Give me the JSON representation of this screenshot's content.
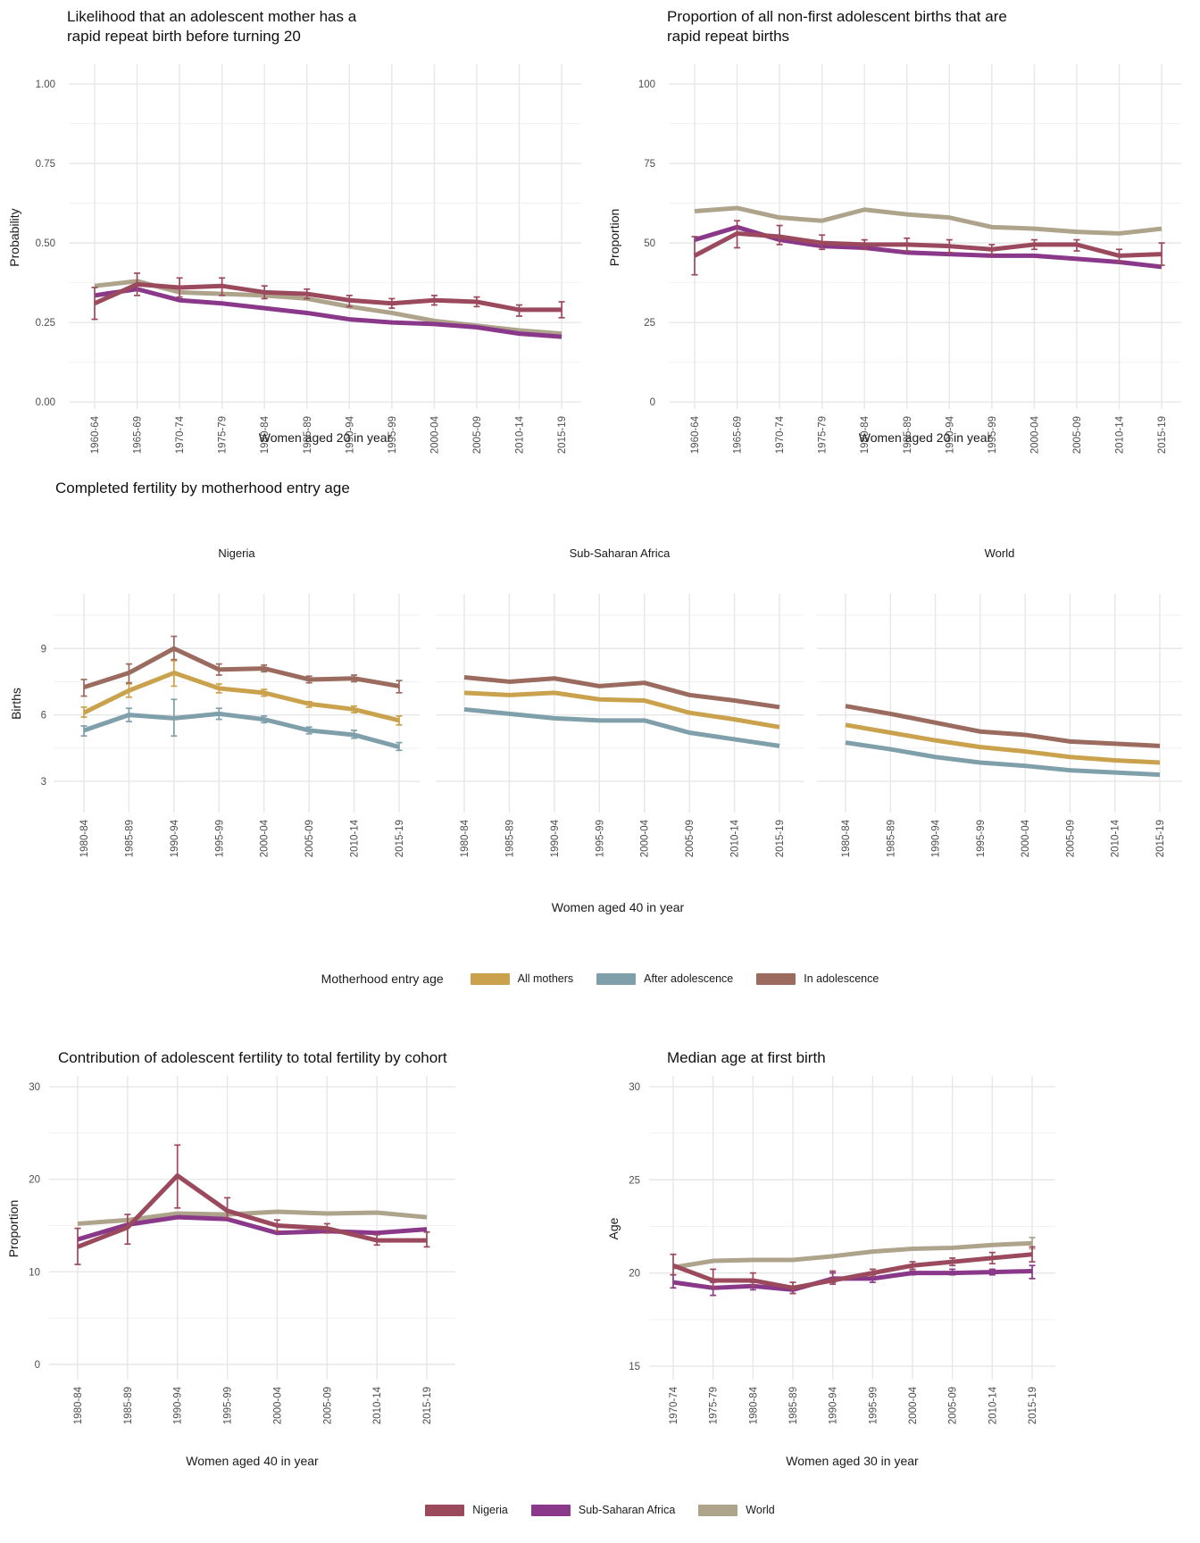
{
  "palette": {
    "nigeria": "#9B4A5E",
    "sub_saharan_africa": "#8A3889",
    "world": "#AEA38B",
    "all_mothers": "#CAA24D",
    "after_adolescence": "#7FA0AB",
    "in_adolescence": "#9A6B5E",
    "grid_major": "#E7E7E7",
    "grid_minor": "#F2F2F2",
    "tick_text": "#4D4D4D"
  },
  "legends": {
    "motherhood": {
      "title": "Motherhood entry age",
      "items": [
        {
          "label": "All mothers",
          "color": "#CAA24D"
        },
        {
          "label": "After adolescence",
          "color": "#7FA0AB"
        },
        {
          "label": "In adolescence",
          "color": "#9A6B5E"
        }
      ]
    },
    "region": {
      "items": [
        {
          "label": "Nigeria",
          "color": "#9B4A5E"
        },
        {
          "label": "Sub-Saharan Africa",
          "color": "#8A3889"
        },
        {
          "label": "World",
          "color": "#AEA38B"
        }
      ]
    }
  },
  "chart_data": [
    {
      "id": "likelihood-rapid-repeat-birth",
      "type": "line",
      "title": "Likelihood that an adolescent mother has a\nrapid repeat birth before turning 20",
      "xlabel": "Women aged 20 in year",
      "ylabel": "Probability",
      "ylim": [
        -0.022,
        1.062
      ],
      "yticks": [
        {
          "value": 0,
          "label": "0.00"
        },
        {
          "value": 0.25,
          "label": "0.25"
        },
        {
          "value": 0.5,
          "label": "0.50"
        },
        {
          "value": 0.75,
          "label": "0.75"
        },
        {
          "value": 1,
          "label": "1.00"
        }
      ],
      "yminor": [
        0.125,
        0.375,
        0.625,
        0.875
      ],
      "categories": [
        "1960-64",
        "1965-69",
        "1970-74",
        "1975-79",
        "1980-84",
        "1985-89",
        "1990-94",
        "1995-99",
        "2000-04",
        "2005-09",
        "2010-14",
        "2015-19"
      ],
      "series": [
        {
          "name": "World",
          "color": "#AEA38B",
          "values": [
            0.365,
            0.38,
            0.345,
            0.34,
            0.335,
            0.325,
            0.3,
            0.28,
            0.255,
            0.24,
            0.225,
            0.215
          ]
        },
        {
          "name": "Sub-Saharan Africa",
          "color": "#8A3889",
          "values": [
            0.335,
            0.355,
            0.32,
            0.31,
            0.295,
            0.28,
            0.26,
            0.25,
            0.245,
            0.235,
            0.215,
            0.205
          ]
        },
        {
          "name": "Nigeria",
          "color": "#9B4A5E",
          "values": [
            0.31,
            0.37,
            0.36,
            0.365,
            0.345,
            0.34,
            0.32,
            0.31,
            0.32,
            0.315,
            0.29,
            0.29
          ],
          "err_lo": [
            0.26,
            0.335,
            0.33,
            0.335,
            0.325,
            0.325,
            0.3,
            0.295,
            0.305,
            0.3,
            0.27,
            0.265
          ],
          "err_hi": [
            0.36,
            0.405,
            0.39,
            0.39,
            0.365,
            0.355,
            0.335,
            0.325,
            0.335,
            0.33,
            0.305,
            0.315
          ]
        }
      ]
    },
    {
      "id": "proportion-rapid-repeat-births",
      "type": "line",
      "title": "Proportion of all non-first adolescent births that are\nrapid repeat births",
      "xlabel": "Women aged 20 in year",
      "ylabel": "Proportion",
      "ylim": [
        -2.2,
        106.2
      ],
      "yticks": [
        {
          "value": 0,
          "label": "0"
        },
        {
          "value": 25,
          "label": "25"
        },
        {
          "value": 50,
          "label": "50"
        },
        {
          "value": 75,
          "label": "75"
        },
        {
          "value": 100,
          "label": "100"
        }
      ],
      "yminor": [
        12.5,
        37.5,
        62.5,
        87.5
      ],
      "categories": [
        "1960-64",
        "1965-69",
        "1970-74",
        "1975-79",
        "1980-84",
        "1985-89",
        "1990-94",
        "1995-99",
        "2000-04",
        "2005-09",
        "2010-14",
        "2015-19"
      ],
      "series": [
        {
          "name": "World",
          "color": "#AEA38B",
          "values": [
            60,
            61,
            58,
            57,
            60.5,
            59,
            58,
            55,
            54.5,
            53.5,
            53,
            54.5
          ]
        },
        {
          "name": "Sub-Saharan Africa",
          "color": "#8A3889",
          "values": [
            51,
            55,
            51,
            49,
            48.5,
            47,
            46.5,
            46,
            46,
            45,
            44,
            42.5
          ]
        },
        {
          "name": "Nigeria",
          "color": "#9B4A5E",
          "values": [
            46,
            53,
            52,
            50,
            49.5,
            49.5,
            49,
            48,
            49.5,
            49.5,
            46,
            46.5
          ],
          "err_lo": [
            40,
            48.5,
            49.5,
            48,
            48,
            47.5,
            47,
            46.5,
            48,
            47.5,
            44,
            43
          ],
          "err_hi": [
            52,
            57,
            55.5,
            52.5,
            51,
            51.5,
            51,
            49.5,
            51,
            51,
            48,
            50
          ]
        }
      ]
    },
    {
      "id": "completed-fertility",
      "type": "line",
      "title": "Completed fertility by motherhood entry age",
      "xlabel": "Women aged 40 in year",
      "ylabel": "Births",
      "ylim": [
        1.59,
        11.47
      ],
      "yticks": [
        {
          "value": 3,
          "label": "3"
        },
        {
          "value": 6,
          "label": "6"
        },
        {
          "value": 9,
          "label": "9"
        }
      ],
      "yminor": [
        4.5,
        7.5,
        10.5
      ],
      "categories": [
        "1980-84",
        "1985-89",
        "1990-94",
        "1995-99",
        "2000-04",
        "2005-09",
        "2010-14",
        "2015-19"
      ],
      "facets": [
        {
          "label": "Nigeria",
          "series": [
            {
              "name": "After adolescence",
              "color": "#7FA0AB",
              "values": [
                5.3,
                6.0,
                5.85,
                6.05,
                5.8,
                5.3,
                5.1,
                4.55
              ],
              "err_lo": [
                5.05,
                5.7,
                5.05,
                5.8,
                5.65,
                5.15,
                4.95,
                4.4
              ],
              "err_hi": [
                5.5,
                6.3,
                6.7,
                6.3,
                5.95,
                5.45,
                5.3,
                4.75
              ]
            },
            {
              "name": "All mothers",
              "color": "#CAA24D",
              "values": [
                6.1,
                7.1,
                7.9,
                7.2,
                7.0,
                6.5,
                6.25,
                5.75
              ],
              "err_lo": [
                5.9,
                6.8,
                7.3,
                7.0,
                6.85,
                6.35,
                6.1,
                5.55
              ],
              "err_hi": [
                6.35,
                7.4,
                8.45,
                7.4,
                7.15,
                6.6,
                6.4,
                5.95
              ]
            },
            {
              "name": "In adolescence",
              "color": "#9A6B5E",
              "values": [
                7.25,
                7.9,
                9.0,
                8.05,
                8.1,
                7.6,
                7.65,
                7.3
              ],
              "err_lo": [
                6.85,
                7.45,
                8.5,
                7.8,
                7.95,
                7.45,
                7.5,
                7.0
              ],
              "err_hi": [
                7.6,
                8.3,
                9.55,
                8.3,
                8.25,
                7.75,
                7.8,
                7.55
              ]
            }
          ]
        },
        {
          "label": "Sub-Saharan Africa",
          "series": [
            {
              "name": "After adolescence",
              "color": "#7FA0AB",
              "values": [
                6.25,
                6.05,
                5.85,
                5.75,
                5.75,
                5.2,
                4.9,
                4.6
              ]
            },
            {
              "name": "All mothers",
              "color": "#CAA24D",
              "values": [
                7.0,
                6.9,
                7.0,
                6.7,
                6.65,
                6.1,
                5.8,
                5.45
              ]
            },
            {
              "name": "In adolescence",
              "color": "#9A6B5E",
              "values": [
                7.7,
                7.5,
                7.65,
                7.3,
                7.45,
                6.9,
                6.65,
                6.35
              ]
            }
          ]
        },
        {
          "label": "World",
          "series": [
            {
              "name": "After adolescence",
              "color": "#7FA0AB",
              "values": [
                4.75,
                4.45,
                4.1,
                3.85,
                3.7,
                3.5,
                3.4,
                3.3
              ]
            },
            {
              "name": "All mothers",
              "color": "#CAA24D",
              "values": [
                5.55,
                5.2,
                4.85,
                4.55,
                4.35,
                4.1,
                3.95,
                3.85
              ]
            },
            {
              "name": "In adolescence",
              "color": "#9A6B5E",
              "values": [
                6.4,
                6.05,
                5.65,
                5.25,
                5.1,
                4.8,
                4.7,
                4.6
              ]
            }
          ]
        }
      ]
    },
    {
      "id": "adolescent-fertility-contribution",
      "type": "line",
      "title": "Contribution of adolescent fertility to total fertility by cohort",
      "xlabel": "Women aged 40 in year",
      "ylabel": "Proportion",
      "ylim": [
        -1.64,
        31.16
      ],
      "yticks": [
        {
          "value": 0,
          "label": "0"
        },
        {
          "value": 10,
          "label": "10"
        },
        {
          "value": 20,
          "label": "20"
        },
        {
          "value": 30,
          "label": "30"
        }
      ],
      "yminor": [
        5,
        15,
        25
      ],
      "categories": [
        "1980-84",
        "1985-89",
        "1990-94",
        "1995-99",
        "2000-04",
        "2005-09",
        "2010-14",
        "2015-19"
      ],
      "series": [
        {
          "name": "World",
          "color": "#AEA38B",
          "values": [
            15.2,
            15.6,
            16.3,
            16.2,
            16.5,
            16.3,
            16.4,
            15.9
          ]
        },
        {
          "name": "Sub-Saharan Africa",
          "color": "#8A3889",
          "values": [
            13.5,
            15.1,
            15.9,
            15.7,
            14.2,
            14.4,
            14.2,
            14.6
          ]
        },
        {
          "name": "Nigeria",
          "color": "#9B4A5E",
          "values": [
            12.7,
            14.8,
            20.4,
            16.6,
            15.0,
            14.7,
            13.4,
            13.4
          ],
          "err_lo": [
            10.8,
            13.0,
            16.9,
            15.8,
            14.4,
            14.2,
            12.9,
            12.7
          ],
          "err_hi": [
            14.7,
            16.2,
            23.7,
            18.0,
            15.6,
            15.2,
            14.0,
            14.3
          ]
        }
      ]
    },
    {
      "id": "median-age-first-birth",
      "type": "line",
      "title": "Median age at first birth",
      "xlabel": "Women aged 30 in year",
      "ylabel": "Age",
      "ylim": [
        14.28,
        30.57
      ],
      "yticks": [
        {
          "value": 15,
          "label": "15"
        },
        {
          "value": 20,
          "label": "20"
        },
        {
          "value": 25,
          "label": "25"
        },
        {
          "value": 30,
          "label": "30"
        }
      ],
      "yminor": [
        17.5,
        22.5,
        27.5
      ],
      "categories": [
        "1970-74",
        "1975-79",
        "1980-84",
        "1985-89",
        "1990-94",
        "1995-99",
        "2000-04",
        "2005-09",
        "2010-14",
        "2015-19"
      ],
      "series": [
        {
          "name": "World",
          "color": "#AEA38B",
          "values": [
            20.3,
            20.65,
            20.7,
            20.7,
            20.9,
            21.15,
            21.3,
            21.35,
            21.5,
            21.6
          ],
          "err_lo": [
            null,
            null,
            null,
            null,
            null,
            null,
            null,
            null,
            null,
            21.3
          ],
          "err_hi": [
            null,
            null,
            null,
            null,
            null,
            null,
            null,
            null,
            null,
            21.9
          ]
        },
        {
          "name": "Sub-Saharan Africa",
          "color": "#8A3889",
          "values": [
            19.5,
            19.2,
            19.3,
            19.1,
            19.7,
            19.7,
            20.0,
            20.0,
            20.05,
            20.1
          ],
          "err_lo": [
            19.2,
            18.8,
            19.1,
            18.9,
            19.5,
            19.5,
            19.9,
            19.9,
            19.9,
            19.7
          ],
          "err_hi": [
            19.9,
            19.5,
            19.5,
            19.3,
            20.0,
            19.9,
            20.1,
            20.2,
            20.2,
            20.4
          ]
        },
        {
          "name": "Nigeria",
          "color": "#9B4A5E",
          "values": [
            20.4,
            19.6,
            19.6,
            19.2,
            19.6,
            20.0,
            20.4,
            20.6,
            20.8,
            21.0
          ],
          "err_lo": [
            19.9,
            19.2,
            19.3,
            18.9,
            19.4,
            19.8,
            20.2,
            20.4,
            20.5,
            20.6
          ],
          "err_hi": [
            21.0,
            20.2,
            20.0,
            19.5,
            20.1,
            20.2,
            20.6,
            20.8,
            21.1,
            21.4
          ]
        }
      ]
    }
  ]
}
